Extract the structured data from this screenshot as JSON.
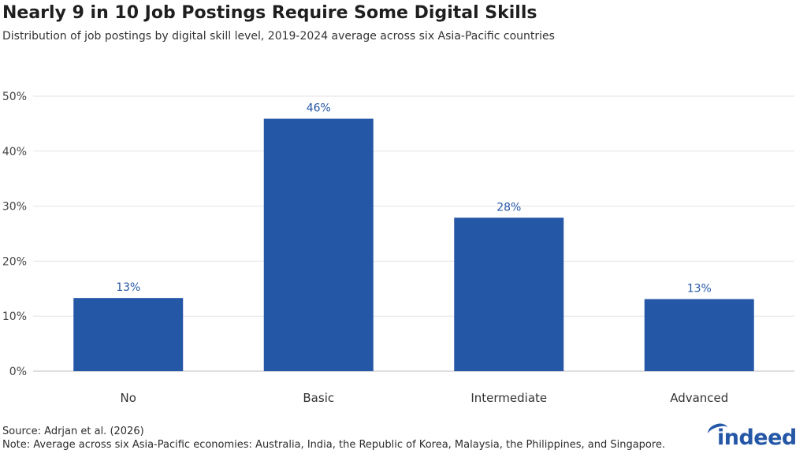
{
  "title": "Nearly 9 in 10 Job Postings Require Some Digital Skills",
  "subtitle": "Distribution of job postings by digital skill level, 2019-2024 average across six Asia-Pacific countries",
  "source": "Source: Adrjan et al. (2026)",
  "note": "Note: Average across six Asia-Pacific economies: Australia, India, the Republic of Korea, Malaysia, the Philippines, and Singapore.",
  "logo_text": "indeed",
  "colors": {
    "bar": "#2557a7",
    "grid": "#e3e3e3",
    "axis": "#bdbdbd",
    "label": "#2557a7"
  },
  "chart_data": {
    "type": "bar",
    "categories": [
      "No",
      "Basic",
      "Intermediate",
      "Advanced"
    ],
    "values": [
      13.3,
      45.9,
      27.9,
      13.1
    ],
    "data_labels": [
      "13%",
      "46%",
      "28%",
      "13%"
    ],
    "ylim": [
      0,
      50
    ],
    "yticks": [
      0,
      10,
      20,
      30,
      40,
      50
    ],
    "ytick_labels": [
      "0%",
      "10%",
      "20%",
      "30%",
      "40%",
      "50%"
    ],
    "xlabel": "",
    "ylabel": "",
    "grid": true,
    "legend": "none"
  }
}
